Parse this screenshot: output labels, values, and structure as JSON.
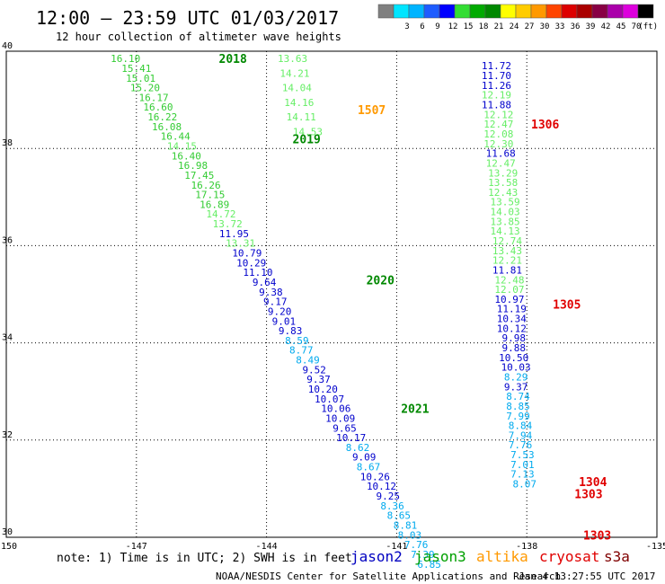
{
  "header": {
    "title": "12:00 — 23:59 UTC 01/03/2017",
    "subtitle": "12 hour collection of altimeter wave heights"
  },
  "colorbar": {
    "labels": [
      "3",
      "6",
      "9",
      "12",
      "15",
      "18",
      "21",
      "24",
      "27",
      "30",
      "33",
      "36",
      "39",
      "42",
      "45",
      "70"
    ],
    "unit": "(ft)",
    "colors": [
      "#808080",
      "#00e5ff",
      "#00b4ff",
      "#1e5cff",
      "#0000ff",
      "#33dd33",
      "#00aa00",
      "#008800",
      "#ffff00",
      "#ffcc00",
      "#ff9900",
      "#ff4400",
      "#dd0000",
      "#aa0000",
      "#880044",
      "#aa00aa",
      "#dd00dd",
      "#000000"
    ]
  },
  "footer": {
    "note": "note: 1) Time is in UTC; 2) SWH is in feet",
    "legend": [
      {
        "name": "jason2",
        "color": "#0000c0"
      },
      {
        "name": "jason3",
        "color": "#00a000"
      },
      {
        "name": "altika",
        "color": "#ff9900"
      },
      {
        "name": "cryosat",
        "color": "#e00000"
      },
      {
        "name": "s3a",
        "color": "#800000"
      }
    ],
    "credit": "NOAA/NESDIS Center for Satellite Applications and Research",
    "timestamp": "Jan  4 13:27:55 UTC 2017"
  },
  "chart_data": {
    "type": "scatter",
    "xlim": [
      -150,
      -135
    ],
    "ylim": [
      30,
      40
    ],
    "x_ticks": [
      "-150",
      "-147",
      "-144",
      "-141",
      "-138",
      "-135"
    ],
    "y_ticks": [
      "30",
      "32",
      "34",
      "36",
      "38",
      "40"
    ],
    "grid": true,
    "pass_labels": [
      {
        "text": "2018",
        "lon": -145.1,
        "lat": 39.85,
        "color": "#008800"
      },
      {
        "text": "1507",
        "lon": -141.9,
        "lat": 38.8,
        "color": "#ff9900"
      },
      {
        "text": "1306",
        "lon": -137.9,
        "lat": 38.5,
        "color": "#e00000"
      },
      {
        "text": "2019",
        "lon": -143.4,
        "lat": 38.2,
        "color": "#008800"
      },
      {
        "text": "2020",
        "lon": -141.7,
        "lat": 35.3,
        "color": "#008800"
      },
      {
        "text": "1305",
        "lon": -137.4,
        "lat": 34.8,
        "color": "#e00000"
      },
      {
        "text": "2021",
        "lon": -140.9,
        "lat": 32.65,
        "color": "#008800"
      },
      {
        "text": "1304",
        "lon": -136.8,
        "lat": 31.15,
        "color": "#e00000"
      },
      {
        "text": "1303",
        "lon": -136.9,
        "lat": 30.9,
        "color": "#e00000"
      },
      {
        "text": "1303",
        "lon": -136.7,
        "lat": 30.05,
        "color": "#e00000"
      }
    ],
    "series": [
      {
        "name": "jason3",
        "points": [
          {
            "lon": -147.25,
            "lat": 39.85,
            "v": "16.10",
            "c": "#33cc33"
          },
          {
            "lon": -147.0,
            "lat": 39.65,
            "v": "15.41",
            "c": "#33cc33"
          },
          {
            "lon": -146.9,
            "lat": 39.45,
            "v": "15.01",
            "c": "#33cc33"
          },
          {
            "lon": -146.8,
            "lat": 39.25,
            "v": "15.20",
            "c": "#33cc33"
          },
          {
            "lon": -146.6,
            "lat": 39.05,
            "v": "16.17",
            "c": "#33cc33"
          },
          {
            "lon": -146.5,
            "lat": 38.85,
            "v": "16.60",
            "c": "#33cc33"
          },
          {
            "lon": -146.4,
            "lat": 38.65,
            "v": "16.22",
            "c": "#33cc33"
          },
          {
            "lon": -146.3,
            "lat": 38.45,
            "v": "16.08",
            "c": "#33cc33"
          },
          {
            "lon": -146.1,
            "lat": 38.25,
            "v": "16.44",
            "c": "#33cc33"
          },
          {
            "lon": -145.95,
            "lat": 38.05,
            "v": "14.15",
            "c": "#66ee66"
          },
          {
            "lon": -145.85,
            "lat": 37.85,
            "v": "16.40",
            "c": "#33cc33"
          },
          {
            "lon": -145.7,
            "lat": 37.65,
            "v": "16.98",
            "c": "#33cc33"
          },
          {
            "lon": -145.55,
            "lat": 37.45,
            "v": "17.45",
            "c": "#33cc33"
          },
          {
            "lon": -145.4,
            "lat": 37.25,
            "v": "16.26",
            "c": "#33cc33"
          },
          {
            "lon": -145.3,
            "lat": 37.05,
            "v": "17.15",
            "c": "#33cc33"
          },
          {
            "lon": -145.2,
            "lat": 36.85,
            "v": "16.89",
            "c": "#33cc33"
          },
          {
            "lon": -145.05,
            "lat": 36.65,
            "v": "14.72",
            "c": "#66ee66"
          },
          {
            "lon": -144.9,
            "lat": 36.45,
            "v": "13.72",
            "c": "#66ee66"
          },
          {
            "lon": -144.75,
            "lat": 36.25,
            "v": "11.95",
            "c": "#0000cc"
          },
          {
            "lon": -144.6,
            "lat": 36.05,
            "v": "13.31",
            "c": "#66ee66"
          },
          {
            "lon": -144.45,
            "lat": 35.85,
            "v": "10.79",
            "c": "#0000cc"
          },
          {
            "lon": -144.35,
            "lat": 35.65,
            "v": "10.29",
            "c": "#0000cc"
          },
          {
            "lon": -144.2,
            "lat": 35.45,
            "v": "11.10",
            "c": "#0000cc"
          },
          {
            "lon": -144.05,
            "lat": 35.25,
            "v": "9.64",
            "c": "#0000cc"
          },
          {
            "lon": -143.9,
            "lat": 35.05,
            "v": "9.38",
            "c": "#0000cc"
          },
          {
            "lon": -143.8,
            "lat": 34.85,
            "v": "9.17",
            "c": "#0000cc"
          },
          {
            "lon": -143.7,
            "lat": 34.65,
            "v": "9.20",
            "c": "#0000cc"
          },
          {
            "lon": -143.6,
            "lat": 34.45,
            "v": "9.01",
            "c": "#0000cc"
          },
          {
            "lon": -143.45,
            "lat": 34.25,
            "v": "9.83",
            "c": "#0000cc"
          },
          {
            "lon": -143.3,
            "lat": 34.05,
            "v": "8.59",
            "c": "#00aaee"
          },
          {
            "lon": -143.2,
            "lat": 33.85,
            "v": "8.77",
            "c": "#00aaee"
          },
          {
            "lon": -143.05,
            "lat": 33.65,
            "v": "8.49",
            "c": "#00aaee"
          },
          {
            "lon": -142.9,
            "lat": 33.45,
            "v": "9.52",
            "c": "#0000cc"
          },
          {
            "lon": -142.8,
            "lat": 33.25,
            "v": "9.37",
            "c": "#0000cc"
          },
          {
            "lon": -142.7,
            "lat": 33.05,
            "v": "10.20",
            "c": "#0000cc"
          },
          {
            "lon": -142.55,
            "lat": 32.85,
            "v": "10.07",
            "c": "#0000cc"
          },
          {
            "lon": -142.4,
            "lat": 32.65,
            "v": "10.06",
            "c": "#0000cc"
          },
          {
            "lon": -142.3,
            "lat": 32.45,
            "v": "10.09",
            "c": "#0000cc"
          },
          {
            "lon": -142.2,
            "lat": 32.25,
            "v": "9.65",
            "c": "#0000cc"
          },
          {
            "lon": -142.05,
            "lat": 32.05,
            "v": "10.17",
            "c": "#0000cc"
          },
          {
            "lon": -141.9,
            "lat": 31.85,
            "v": "8.62",
            "c": "#00aaee"
          },
          {
            "lon": -141.75,
            "lat": 31.65,
            "v": "9.09",
            "c": "#0000cc"
          },
          {
            "lon": -141.65,
            "lat": 31.45,
            "v": "8.67",
            "c": "#00aaee"
          },
          {
            "lon": -141.5,
            "lat": 31.25,
            "v": "10.26",
            "c": "#0000cc"
          },
          {
            "lon": -141.35,
            "lat": 31.05,
            "v": "10.12",
            "c": "#0000cc"
          },
          {
            "lon": -141.2,
            "lat": 30.85,
            "v": "9.25",
            "c": "#0000cc"
          },
          {
            "lon": -141.1,
            "lat": 30.65,
            "v": "8.36",
            "c": "#00aaee"
          },
          {
            "lon": -140.95,
            "lat": 30.45,
            "v": "8.65",
            "c": "#00aaee"
          },
          {
            "lon": -140.8,
            "lat": 30.25,
            "v": "8.81",
            "c": "#00aaee"
          },
          {
            "lon": -140.7,
            "lat": 30.05,
            "v": "8.03",
            "c": "#00aaee"
          },
          {
            "lon": -140.55,
            "lat": 29.85,
            "v": "7.76",
            "c": "#00aaee"
          },
          {
            "lon": -140.4,
            "lat": 29.65,
            "v": "7.39",
            "c": "#00aaee"
          },
          {
            "lon": -140.25,
            "lat": 29.45,
            "v": "6.85",
            "c": "#00aaee"
          }
        ]
      },
      {
        "name": "altika",
        "points": [
          {
            "lon": -143.4,
            "lat": 39.85,
            "v": "13.63",
            "c": "#66ee66"
          },
          {
            "lon": -143.35,
            "lat": 39.55,
            "v": "14.21",
            "c": "#66ee66"
          },
          {
            "lon": -143.3,
            "lat": 39.25,
            "v": "14.04",
            "c": "#66ee66"
          },
          {
            "lon": -143.25,
            "lat": 38.95,
            "v": "14.16",
            "c": "#66ee66"
          },
          {
            "lon": -143.2,
            "lat": 38.65,
            "v": "14.11",
            "c": "#66ee66"
          },
          {
            "lon": -143.05,
            "lat": 38.35,
            "v": "14.53",
            "c": "#66ee66"
          }
        ]
      },
      {
        "name": "cryosat",
        "points": [
          {
            "lon": -138.7,
            "lat": 39.7,
            "v": "11.72",
            "c": "#0000cc"
          },
          {
            "lon": -138.7,
            "lat": 39.5,
            "v": "11.70",
            "c": "#0000cc"
          },
          {
            "lon": -138.7,
            "lat": 39.3,
            "v": "11.26",
            "c": "#0000cc"
          },
          {
            "lon": -138.7,
            "lat": 39.1,
            "v": "12.19",
            "c": "#66ee66"
          },
          {
            "lon": -138.7,
            "lat": 38.9,
            "v": "11.88",
            "c": "#0000cc"
          },
          {
            "lon": -138.65,
            "lat": 38.7,
            "v": "12.12",
            "c": "#66ee66"
          },
          {
            "lon": -138.65,
            "lat": 38.5,
            "v": "12.47",
            "c": "#66ee66"
          },
          {
            "lon": -138.65,
            "lat": 38.3,
            "v": "12.08",
            "c": "#66ee66"
          },
          {
            "lon": -138.65,
            "lat": 38.1,
            "v": "12.30",
            "c": "#66ee66"
          },
          {
            "lon": -138.6,
            "lat": 37.9,
            "v": "11.68",
            "c": "#0000cc"
          },
          {
            "lon": -138.6,
            "lat": 37.7,
            "v": "12.47",
            "c": "#66ee66"
          },
          {
            "lon": -138.55,
            "lat": 37.5,
            "v": "13.29",
            "c": "#66ee66"
          },
          {
            "lon": -138.55,
            "lat": 37.3,
            "v": "13.58",
            "c": "#66ee66"
          },
          {
            "lon": -138.55,
            "lat": 37.1,
            "v": "12.43",
            "c": "#66ee66"
          },
          {
            "lon": -138.5,
            "lat": 36.9,
            "v": "13.59",
            "c": "#66ee66"
          },
          {
            "lon": -138.5,
            "lat": 36.7,
            "v": "14.03",
            "c": "#66ee66"
          },
          {
            "lon": -138.5,
            "lat": 36.5,
            "v": "13.85",
            "c": "#66ee66"
          },
          {
            "lon": -138.5,
            "lat": 36.3,
            "v": "14.13",
            "c": "#66ee66"
          },
          {
            "lon": -138.45,
            "lat": 36.1,
            "v": "12.74",
            "c": "#66ee66"
          },
          {
            "lon": -138.45,
            "lat": 35.9,
            "v": "13.43",
            "c": "#66ee66"
          },
          {
            "lon": -138.45,
            "lat": 35.7,
            "v": "12.21",
            "c": "#66ee66"
          },
          {
            "lon": -138.45,
            "lat": 35.5,
            "v": "11.81",
            "c": "#0000cc"
          },
          {
            "lon": -138.4,
            "lat": 35.3,
            "v": "12.48",
            "c": "#66ee66"
          },
          {
            "lon": -138.4,
            "lat": 35.1,
            "v": "12.07",
            "c": "#66ee66"
          },
          {
            "lon": -138.4,
            "lat": 34.9,
            "v": "10.97",
            "c": "#0000cc"
          },
          {
            "lon": -138.35,
            "lat": 34.7,
            "v": "11.19",
            "c": "#0000cc"
          },
          {
            "lon": -138.35,
            "lat": 34.5,
            "v": "10.34",
            "c": "#0000cc"
          },
          {
            "lon": -138.35,
            "lat": 34.3,
            "v": "10.12",
            "c": "#0000cc"
          },
          {
            "lon": -138.3,
            "lat": 34.1,
            "v": "9.98",
            "c": "#0000cc"
          },
          {
            "lon": -138.3,
            "lat": 33.9,
            "v": "9.88",
            "c": "#0000cc"
          },
          {
            "lon": -138.3,
            "lat": 33.7,
            "v": "10.50",
            "c": "#0000cc"
          },
          {
            "lon": -138.25,
            "lat": 33.5,
            "v": "10.03",
            "c": "#0000cc"
          },
          {
            "lon": -138.25,
            "lat": 33.3,
            "v": "8.29",
            "c": "#00aaee"
          },
          {
            "lon": -138.25,
            "lat": 33.1,
            "v": "9.37",
            "c": "#0000cc"
          },
          {
            "lon": -138.2,
            "lat": 32.9,
            "v": "8.74",
            "c": "#00aaee"
          },
          {
            "lon": -138.2,
            "lat": 32.7,
            "v": "8.85",
            "c": "#00aaee"
          },
          {
            "lon": -138.2,
            "lat": 32.5,
            "v": "7.99",
            "c": "#00aaee"
          },
          {
            "lon": -138.15,
            "lat": 32.3,
            "v": "8.84",
            "c": "#00aaee"
          },
          {
            "lon": -138.15,
            "lat": 32.1,
            "v": "7.94",
            "c": "#00aaee"
          },
          {
            "lon": -138.15,
            "lat": 31.9,
            "v": "7.76",
            "c": "#00aaee"
          },
          {
            "lon": -138.1,
            "lat": 31.7,
            "v": "7.53",
            "c": "#00aaee"
          },
          {
            "lon": -138.1,
            "lat": 31.5,
            "v": "7.01",
            "c": "#00aaee"
          },
          {
            "lon": -138.1,
            "lat": 31.3,
            "v": "7.13",
            "c": "#00aaee"
          },
          {
            "lon": -138.05,
            "lat": 31.1,
            "v": "8.07",
            "c": "#00aaee"
          }
        ]
      }
    ]
  }
}
